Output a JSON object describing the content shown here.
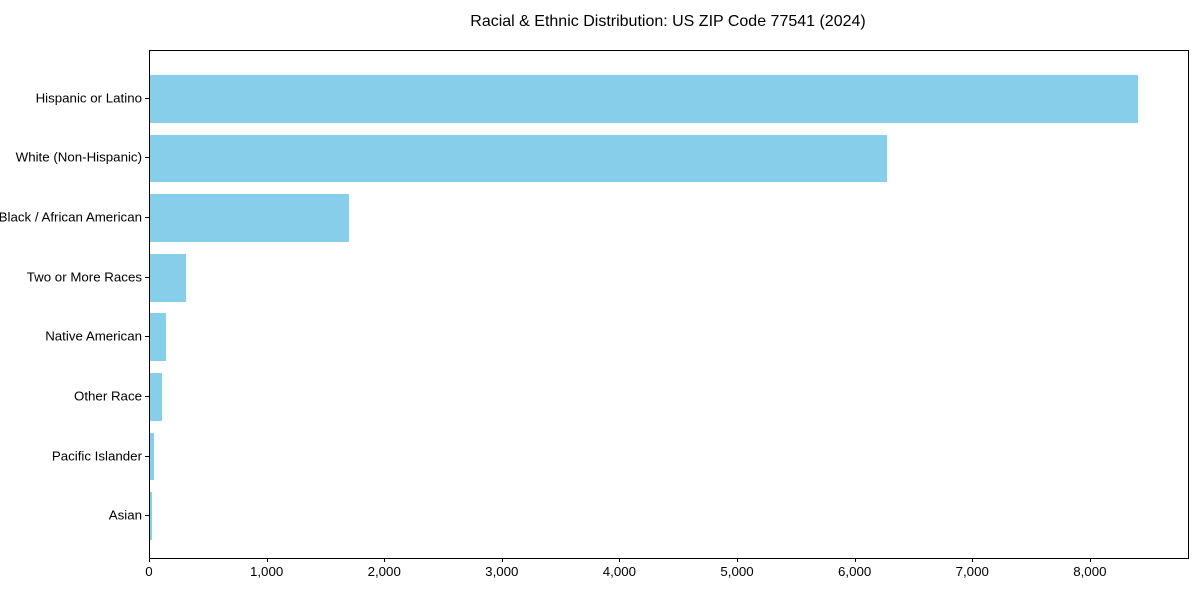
{
  "chart_data": {
    "type": "bar",
    "orientation": "horizontal",
    "title": "Racial & Ethnic Distribution: US ZIP Code 77541 (2024)",
    "categories": [
      "Hispanic or Latino",
      "White (Non-Hispanic)",
      "Black / African American",
      "Two or More Races",
      "Native American",
      "Other Race",
      "Pacific Islander",
      "Asian"
    ],
    "values": [
      8400,
      6270,
      1690,
      305,
      135,
      100,
      38,
      17
    ],
    "xlabel": "",
    "ylabel": "",
    "xlim": [
      0,
      8826
    ],
    "xticks": [
      0,
      1000,
      2000,
      3000,
      4000,
      5000,
      6000,
      7000,
      8000
    ],
    "xtick_labels": [
      "0",
      "1,000",
      "2,000",
      "3,000",
      "4,000",
      "5,000",
      "6,000",
      "7,000",
      "8,000"
    ],
    "grid": false,
    "legend": null,
    "colors": {
      "bar": "#87CEEB",
      "text": "#000000",
      "spine": "#000000",
      "background": "#ffffff"
    }
  }
}
